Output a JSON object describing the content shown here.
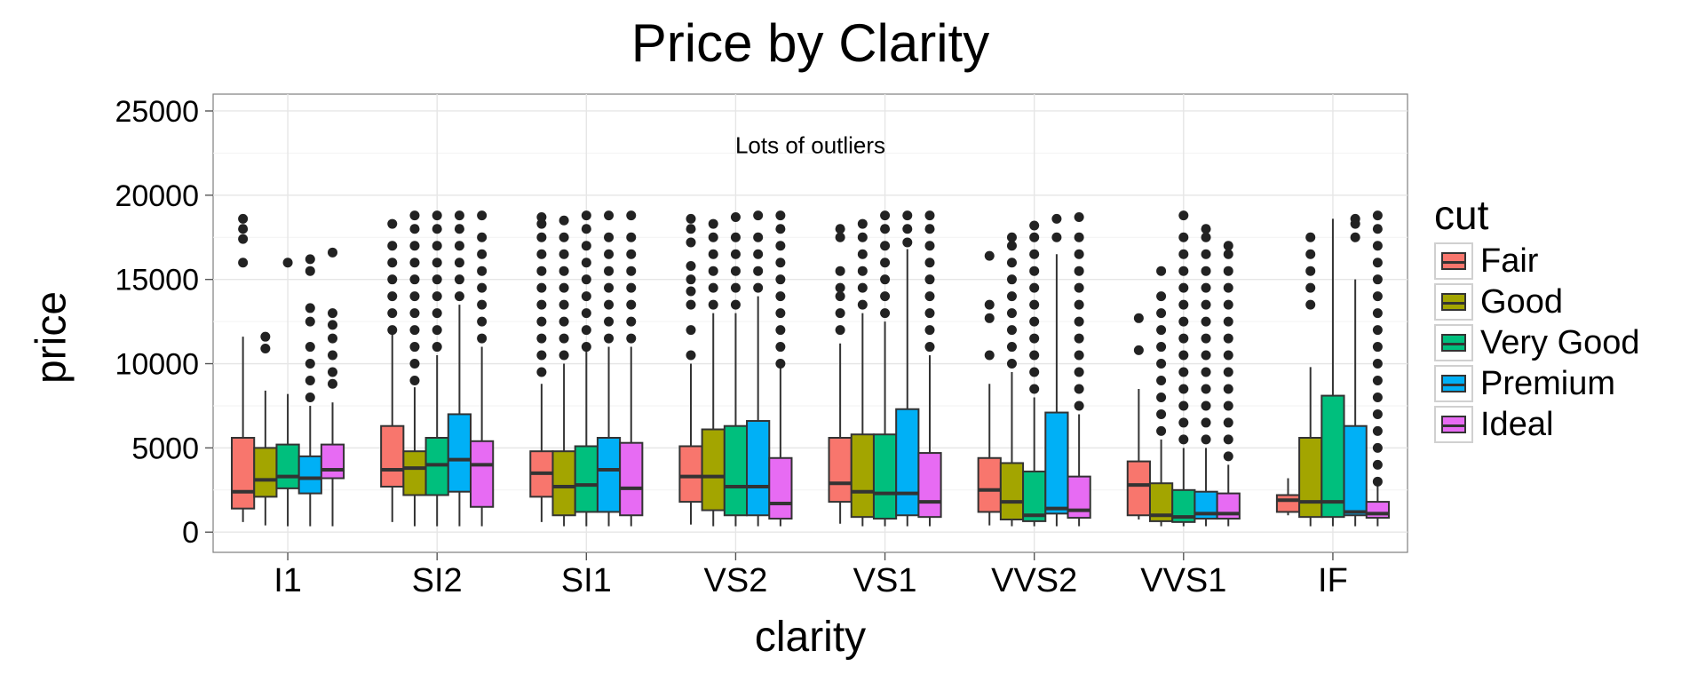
{
  "chart_data": {
    "type": "boxplot",
    "title": "Price by Clarity",
    "xlabel": "clarity",
    "ylabel": "price",
    "ylim": [
      -1200,
      26000
    ],
    "yticks": [
      0,
      5000,
      10000,
      15000,
      20000,
      25000
    ],
    "ytick_labels": [
      "0",
      "5000",
      "10000",
      "15000",
      "20000",
      "25000"
    ],
    "categories": [
      "I1",
      "SI2",
      "SI1",
      "VS2",
      "VS1",
      "VVS2",
      "VVS1",
      "IF"
    ],
    "annotation": {
      "text": "Lots of outliers",
      "x": "VS2",
      "x_offset": 0.5,
      "y": 22500
    },
    "legend": {
      "title": "cut",
      "position": "right"
    },
    "grid": true,
    "series": [
      {
        "name": "Fair",
        "color": "#F8766D",
        "boxes": [
          {
            "lower": 600,
            "q1": 1400,
            "median": 2400,
            "q3": 5600,
            "upper": 11600,
            "outliers": [
              16000,
              17400,
              18000,
              18600
            ]
          },
          {
            "lower": 600,
            "q1": 2700,
            "median": 3700,
            "q3": 6300,
            "upper": 11800,
            "outliers": [
              12000,
              13000,
              14000,
              15000,
              16000,
              17000,
              18300
            ]
          },
          {
            "lower": 600,
            "q1": 2100,
            "median": 3500,
            "q3": 4800,
            "upper": 8800,
            "outliers": [
              9500,
              10500,
              11500,
              12500,
              13500,
              14500,
              15500,
              16500,
              17500,
              18300,
              18700
            ]
          },
          {
            "lower": 450,
            "q1": 1800,
            "median": 3300,
            "q3": 5100,
            "upper": 10000,
            "outliers": [
              10500,
              12000,
              13500,
              14300,
              15000,
              15800,
              17200,
              18000,
              18600
            ]
          },
          {
            "lower": 500,
            "q1": 1800,
            "median": 2900,
            "q3": 5600,
            "upper": 11200,
            "outliers": [
              12000,
              13000,
              14000,
              14500,
              15500,
              17500,
              18000
            ]
          },
          {
            "lower": 400,
            "q1": 1200,
            "median": 2500,
            "q3": 4400,
            "upper": 8800,
            "outliers": [
              10500,
              12700,
              13500,
              16400
            ]
          },
          {
            "lower": 750,
            "q1": 1000,
            "median": 2800,
            "q3": 4200,
            "upper": 8500,
            "outliers": [
              10800,
              12700
            ]
          },
          {
            "lower": 1000,
            "q1": 1200,
            "median": 1900,
            "q3": 2200,
            "upper": 3200,
            "outliers": []
          }
        ]
      },
      {
        "name": "Good",
        "color": "#A3A500",
        "boxes": [
          {
            "lower": 400,
            "q1": 2100,
            "median": 3100,
            "q3": 5000,
            "upper": 8400,
            "outliers": [
              10900,
              11600
            ]
          },
          {
            "lower": 350,
            "q1": 2200,
            "median": 3800,
            "q3": 4800,
            "upper": 8600,
            "outliers": [
              9000,
              10000,
              11000,
              12000,
              13000,
              14000,
              15000,
              16000,
              17000,
              18000,
              18800
            ]
          },
          {
            "lower": 350,
            "q1": 1000,
            "median": 2700,
            "q3": 4800,
            "upper": 10000,
            "outliers": [
              10500,
              11500,
              12500,
              13500,
              14500,
              15500,
              16500,
              17500,
              18500
            ]
          },
          {
            "lower": 350,
            "q1": 1300,
            "median": 3300,
            "q3": 6100,
            "upper": 13000,
            "outliers": [
              13500,
              14500,
              15500,
              16500,
              17500,
              18300
            ]
          },
          {
            "lower": 350,
            "q1": 900,
            "median": 2400,
            "q3": 5800,
            "upper": 13000,
            "outliers": [
              13500,
              14500,
              15500,
              16500,
              17500,
              18300
            ]
          },
          {
            "lower": 350,
            "q1": 750,
            "median": 1800,
            "q3": 4100,
            "upper": 9500,
            "outliers": [
              10000,
              11000,
              12000,
              13000,
              14000,
              15000,
              16000,
              17000,
              17500
            ]
          },
          {
            "lower": 350,
            "q1": 650,
            "median": 1000,
            "q3": 2900,
            "upper": 5500,
            "outliers": [
              6000,
              7000,
              8000,
              9000,
              10000,
              11000,
              12000,
              13000,
              14000,
              15500
            ]
          },
          {
            "lower": 350,
            "q1": 900,
            "median": 1800,
            "q3": 5600,
            "upper": 9800,
            "outliers": [
              13500,
              14500,
              15500,
              16500,
              17500
            ]
          }
        ]
      },
      {
        "name": "Very Good",
        "color": "#00BF7D",
        "boxes": [
          {
            "lower": 350,
            "q1": 2600,
            "median": 3300,
            "q3": 5200,
            "upper": 8200,
            "outliers": [
              16000
            ]
          },
          {
            "lower": 350,
            "q1": 2200,
            "median": 4000,
            "q3": 5600,
            "upper": 10500,
            "outliers": [
              11000,
              12000,
              13000,
              14000,
              15000,
              16000,
              17000,
              18000,
              18800
            ]
          },
          {
            "lower": 350,
            "q1": 1200,
            "median": 2800,
            "q3": 5100,
            "upper": 10800,
            "outliers": [
              11000,
              12000,
              13000,
              14000,
              15000,
              16000,
              17000,
              18000,
              18800
            ]
          },
          {
            "lower": 350,
            "q1": 1000,
            "median": 2700,
            "q3": 6300,
            "upper": 13000,
            "outliers": [
              13500,
              14500,
              15500,
              16500,
              17500,
              18700
            ]
          },
          {
            "lower": 350,
            "q1": 800,
            "median": 2300,
            "q3": 5800,
            "upper": 12500,
            "outliers": [
              13000,
              14000,
              15000,
              16000,
              17000,
              18000,
              18800
            ]
          },
          {
            "lower": 350,
            "q1": 650,
            "median": 1000,
            "q3": 3600,
            "upper": 8000,
            "outliers": [
              8500,
              9500,
              10500,
              11500,
              12500,
              13500,
              14500,
              15500,
              16500,
              17500,
              18200
            ]
          },
          {
            "lower": 350,
            "q1": 600,
            "median": 900,
            "q3": 2500,
            "upper": 5000,
            "outliers": [
              5500,
              6500,
              7500,
              8500,
              9500,
              10500,
              11500,
              12500,
              13500,
              14500,
              15500,
              16500,
              17500,
              18800
            ]
          },
          {
            "lower": 350,
            "q1": 900,
            "median": 1800,
            "q3": 8100,
            "upper": 18600,
            "outliers": []
          }
        ]
      },
      {
        "name": "Premium",
        "color": "#00B0F6",
        "boxes": [
          {
            "lower": 350,
            "q1": 2300,
            "median": 3200,
            "q3": 4500,
            "upper": 7500,
            "outliers": [
              8000,
              9000,
              10000,
              11000,
              12500,
              13300,
              15500,
              16200
            ]
          },
          {
            "lower": 350,
            "q1": 2400,
            "median": 4300,
            "q3": 7000,
            "upper": 13500,
            "outliers": [
              14000,
              15000,
              16000,
              17000,
              18000,
              18800
            ]
          },
          {
            "lower": 350,
            "q1": 1200,
            "median": 3700,
            "q3": 5600,
            "upper": 11000,
            "outliers": [
              11500,
              12500,
              13500,
              14500,
              15500,
              16500,
              17500,
              18800
            ]
          },
          {
            "lower": 350,
            "q1": 1000,
            "median": 2700,
            "q3": 6600,
            "upper": 14000,
            "outliers": [
              14500,
              15500,
              16500,
              17500,
              18800
            ]
          },
          {
            "lower": 350,
            "q1": 1000,
            "median": 2300,
            "q3": 7300,
            "upper": 16800,
            "outliers": [
              17200,
              18000,
              18800
            ]
          },
          {
            "lower": 350,
            "q1": 1100,
            "median": 1400,
            "q3": 7100,
            "upper": 16500,
            "outliers": [
              17500,
              18600
            ]
          },
          {
            "lower": 350,
            "q1": 800,
            "median": 1100,
            "q3": 2400,
            "upper": 5000,
            "outliers": [
              5500,
              6500,
              7500,
              8500,
              9500,
              10500,
              11500,
              12500,
              13500,
              14500,
              15500,
              16500,
              17500,
              18000
            ]
          },
          {
            "lower": 350,
            "q1": 1000,
            "median": 1200,
            "q3": 6300,
            "upper": 15000,
            "outliers": [
              17500,
              18300,
              18600
            ]
          }
        ]
      },
      {
        "name": "Ideal",
        "color": "#E76BF3",
        "boxes": [
          {
            "lower": 350,
            "q1": 3200,
            "median": 3700,
            "q3": 5200,
            "upper": 7700,
            "outliers": [
              8800,
              9500,
              10500,
              11500,
              12300,
              13000,
              16600
            ]
          },
          {
            "lower": 350,
            "q1": 1500,
            "median": 4000,
            "q3": 5400,
            "upper": 11000,
            "outliers": [
              11500,
              12500,
              13500,
              14500,
              15500,
              16500,
              17500,
              18800
            ]
          },
          {
            "lower": 350,
            "q1": 1000,
            "median": 2600,
            "q3": 5300,
            "upper": 11000,
            "outliers": [
              11500,
              12500,
              13500,
              14500,
              15500,
              16500,
              17500,
              18800
            ]
          },
          {
            "lower": 350,
            "q1": 800,
            "median": 1700,
            "q3": 4400,
            "upper": 9800,
            "outliers": [
              10000,
              11000,
              12000,
              13000,
              14000,
              15000,
              16000,
              17000,
              18000,
              18800
            ]
          },
          {
            "lower": 350,
            "q1": 900,
            "median": 1800,
            "q3": 4700,
            "upper": 10500,
            "outliers": [
              11000,
              12000,
              13000,
              14000,
              15000,
              16000,
              17000,
              18000,
              18800
            ]
          },
          {
            "lower": 350,
            "q1": 850,
            "median": 1300,
            "q3": 3300,
            "upper": 7000,
            "outliers": [
              7500,
              8500,
              9500,
              10500,
              11500,
              12500,
              13500,
              14500,
              15500,
              16500,
              17500,
              18700
            ]
          },
          {
            "lower": 350,
            "q1": 800,
            "median": 1100,
            "q3": 2300,
            "upper": 4000,
            "outliers": [
              4500,
              5500,
              6500,
              7500,
              8500,
              9500,
              10500,
              11500,
              12500,
              13500,
              14500,
              15500,
              16500,
              17000
            ]
          },
          {
            "lower": 350,
            "q1": 850,
            "median": 1100,
            "q3": 1800,
            "upper": 2800,
            "outliers": [
              3000,
              4000,
              5000,
              6000,
              7000,
              8000,
              9000,
              10000,
              11000,
              12000,
              13000,
              14000,
              15000,
              16000,
              17000,
              18000,
              18800
            ]
          }
        ]
      }
    ]
  }
}
